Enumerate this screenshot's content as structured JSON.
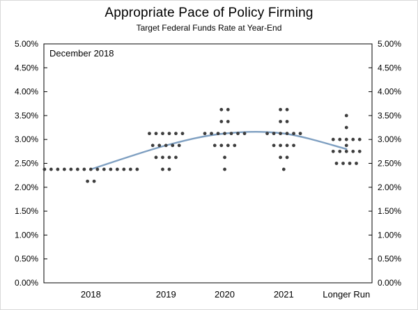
{
  "header": {
    "title": "Appropriate Pace of Policy Firming",
    "subtitle": "Target Federal Funds Rate at Year-End"
  },
  "chart_data": {
    "type": "scatter",
    "title": "Appropriate Pace of Policy Firming",
    "subtitle": "Target Federal Funds Rate at Year-End",
    "annotation": "December 2018",
    "categories": [
      "2018",
      "2019",
      "2020",
      "2021",
      "Longer Run"
    ],
    "ylim": [
      0,
      5
    ],
    "ytick_step": 0.5,
    "grid": false,
    "legend": "none",
    "dot_color": "#3d3d3d",
    "line_color": "#7e9fc1",
    "axis_color": "#000000",
    "yticks": [
      {
        "value": 5.0,
        "label": "5.00%"
      },
      {
        "value": 4.5,
        "label": "4.50%"
      },
      {
        "value": 4.0,
        "label": "4.00%"
      },
      {
        "value": 3.5,
        "label": "3.50%"
      },
      {
        "value": 3.0,
        "label": "3.00%"
      },
      {
        "value": 2.5,
        "label": "2.50%"
      },
      {
        "value": 2.0,
        "label": "2.00%"
      },
      {
        "value": 1.5,
        "label": "1.50%"
      },
      {
        "value": 1.0,
        "label": "1.00%"
      },
      {
        "value": 0.5,
        "label": "0.50%"
      },
      {
        "value": 0.0,
        "label": "0.00%"
      }
    ],
    "dot_groups": [
      {
        "category": "2018",
        "rate": 2.375,
        "count": 15
      },
      {
        "category": "2018",
        "rate": 2.125,
        "count": 2
      },
      {
        "category": "2019",
        "rate": 3.125,
        "count": 6
      },
      {
        "category": "2019",
        "rate": 2.875,
        "count": 5
      },
      {
        "category": "2019",
        "rate": 2.625,
        "count": 4
      },
      {
        "category": "2019",
        "rate": 2.375,
        "count": 2
      },
      {
        "category": "2020",
        "rate": 3.625,
        "count": 2
      },
      {
        "category": "2020",
        "rate": 3.375,
        "count": 2
      },
      {
        "category": "2020",
        "rate": 3.125,
        "count": 7
      },
      {
        "category": "2020",
        "rate": 2.875,
        "count": 4
      },
      {
        "category": "2020",
        "rate": 2.625,
        "count": 1
      },
      {
        "category": "2020",
        "rate": 2.375,
        "count": 1
      },
      {
        "category": "2021",
        "rate": 3.625,
        "count": 2
      },
      {
        "category": "2021",
        "rate": 3.375,
        "count": 2
      },
      {
        "category": "2021",
        "rate": 3.125,
        "count": 6
      },
      {
        "category": "2021",
        "rate": 2.875,
        "count": 4
      },
      {
        "category": "2021",
        "rate": 2.625,
        "count": 2
      },
      {
        "category": "2021",
        "rate": 2.375,
        "count": 1
      },
      {
        "category": "Longer Run",
        "rate": 3.5,
        "count": 1
      },
      {
        "category": "Longer Run",
        "rate": 3.25,
        "count": 1
      },
      {
        "category": "Longer Run",
        "rate": 3.0,
        "count": 5
      },
      {
        "category": "Longer Run",
        "rate": 2.875,
        "count": 1
      },
      {
        "category": "Longer Run",
        "rate": 2.75,
        "count": 5
      },
      {
        "category": "Longer Run",
        "rate": 2.5,
        "count": 4
      }
    ],
    "median_line": {
      "name": "Median path",
      "categories": [
        "2018",
        "2019",
        "2020",
        "2021",
        "Longer Run"
      ],
      "values": [
        2.375,
        2.875,
        3.125,
        3.125,
        2.8
      ]
    }
  }
}
